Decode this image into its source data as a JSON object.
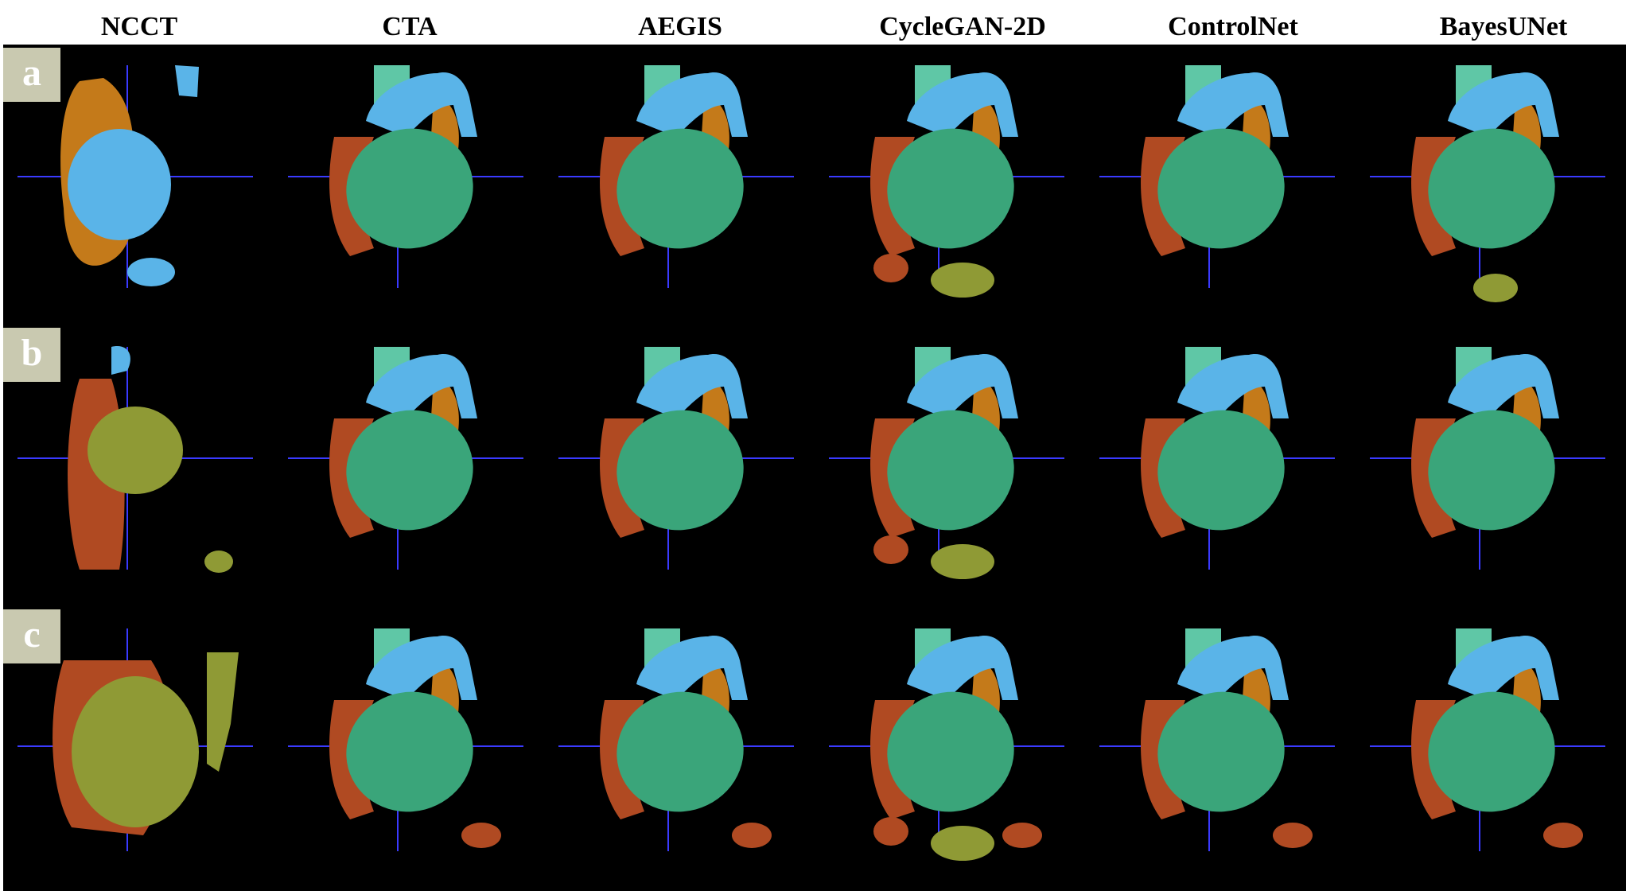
{
  "figure": {
    "columns": [
      "NCCT",
      "CTA",
      "AEGIS",
      "CycleGAN-2D",
      "ControlNet",
      "BayesUNet"
    ],
    "rows": [
      "a",
      "b",
      "c"
    ]
  },
  "colors": {
    "background": "#000000",
    "crosshair": "#3a3aff",
    "ventricle_green": "#3aa57a",
    "aorta_blue": "#5ab4e8",
    "atrium_red": "#b04a22",
    "atrium_orange": "#c47a1a",
    "olive": "#8f9a35",
    "trunk_teal": "#5fc7a6",
    "label_box": "#c9c9b0"
  }
}
